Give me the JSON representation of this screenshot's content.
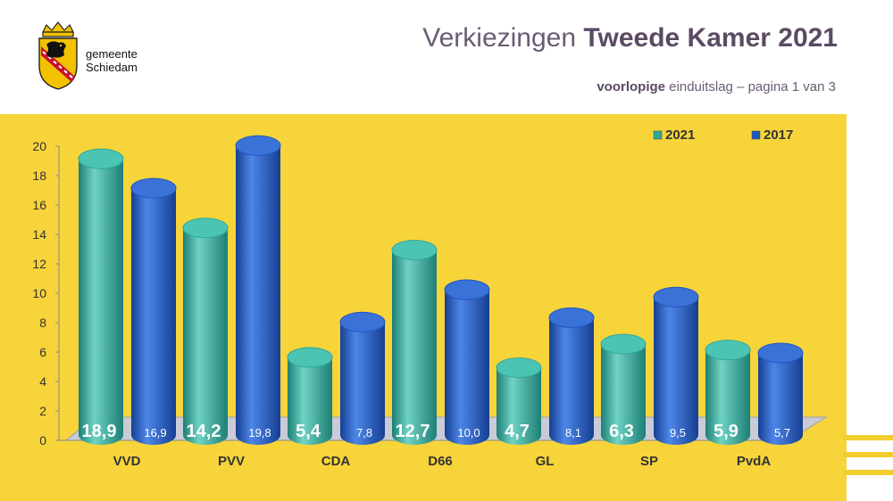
{
  "header": {
    "org_line1": "gemeente",
    "org_line2": "Schiedam",
    "title_normal": "Verkiezingen ",
    "title_bold": "Tweede Kamer 2021",
    "subtitle_bold": "voorlopige",
    "subtitle_rest": " einduitslag – pagina 1 van 3"
  },
  "colors": {
    "background_panel": "#f7d43a",
    "series_2021": "#2fa89a",
    "series_2017": "#1f57c0",
    "title": "#6b5b73"
  },
  "chart_data": {
    "type": "bar",
    "categories": [
      "VVD",
      "PVV",
      "CDA",
      "D66",
      "GL",
      "SP",
      "PvdA"
    ],
    "series": [
      {
        "name": "2021",
        "values": [
          18.9,
          14.2,
          5.4,
          12.7,
          4.7,
          6.3,
          5.9
        ],
        "labels": [
          "18,9",
          "14,2",
          "5,4",
          "12,7",
          "4,7",
          "6,3",
          "5,9"
        ]
      },
      {
        "name": "2017",
        "values": [
          16.9,
          19.8,
          7.8,
          10.0,
          8.1,
          9.5,
          5.7
        ],
        "labels": [
          "16,9",
          "19,8",
          "7,8",
          "10,0",
          "8,1",
          "9,5",
          "5,7"
        ]
      }
    ],
    "yticks": [
      "0",
      "2",
      "4",
      "6",
      "8",
      "10",
      "12",
      "14",
      "16",
      "18",
      "20"
    ],
    "ylim": [
      0,
      20
    ],
    "legend_position": "top-right",
    "style": "3d-cylinder"
  }
}
